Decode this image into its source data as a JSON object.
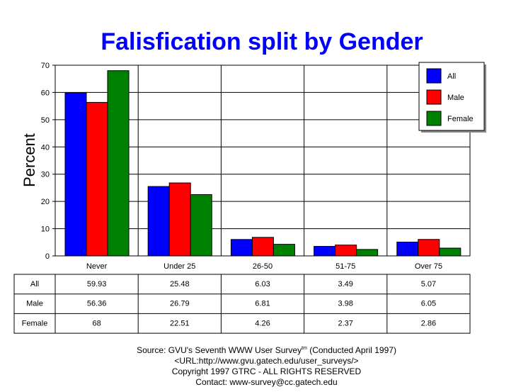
{
  "chart_data": {
    "type": "bar",
    "title": "Falisfication split by Gender",
    "xlabel": "",
    "ylabel": "Percent",
    "ylim": [
      0,
      70
    ],
    "yticks": [
      0,
      10,
      20,
      30,
      40,
      50,
      60,
      70
    ],
    "grid": true,
    "legend_position": "top-right",
    "categories": [
      "Never",
      "Under 25",
      "26-50",
      "51-75",
      "Over 75"
    ],
    "series": [
      {
        "name": "All",
        "color": "#0000ff",
        "values": [
          59.93,
          25.48,
          6.03,
          3.49,
          5.07
        ],
        "labels": [
          "59.93",
          "25.48",
          "6.03",
          "3.49",
          "5.07"
        ]
      },
      {
        "name": "Male",
        "color": "#ff0000",
        "values": [
          56.36,
          26.79,
          6.81,
          3.98,
          6.05
        ],
        "labels": [
          "56.36",
          "26.79",
          "6.81",
          "3.98",
          "6.05"
        ]
      },
      {
        "name": "Female",
        "color": "#008000",
        "values": [
          68,
          22.51,
          4.26,
          2.37,
          2.86
        ],
        "labels": [
          "68",
          "22.51",
          "4.26",
          "2.37",
          "2.86"
        ]
      }
    ]
  },
  "footer": {
    "source": "Source: GVU's Seventh WWW User Survey",
    "tm": "tm",
    "conducted": " (Conducted April 1997)",
    "url": "<URL:http://www.gvu.gatech.edu/user_surveys/>",
    "copyright": "Copyright 1997 GTRC - ALL RIGHTS RESERVED",
    "contact": "Contact: www-survey@cc.gatech.edu"
  }
}
